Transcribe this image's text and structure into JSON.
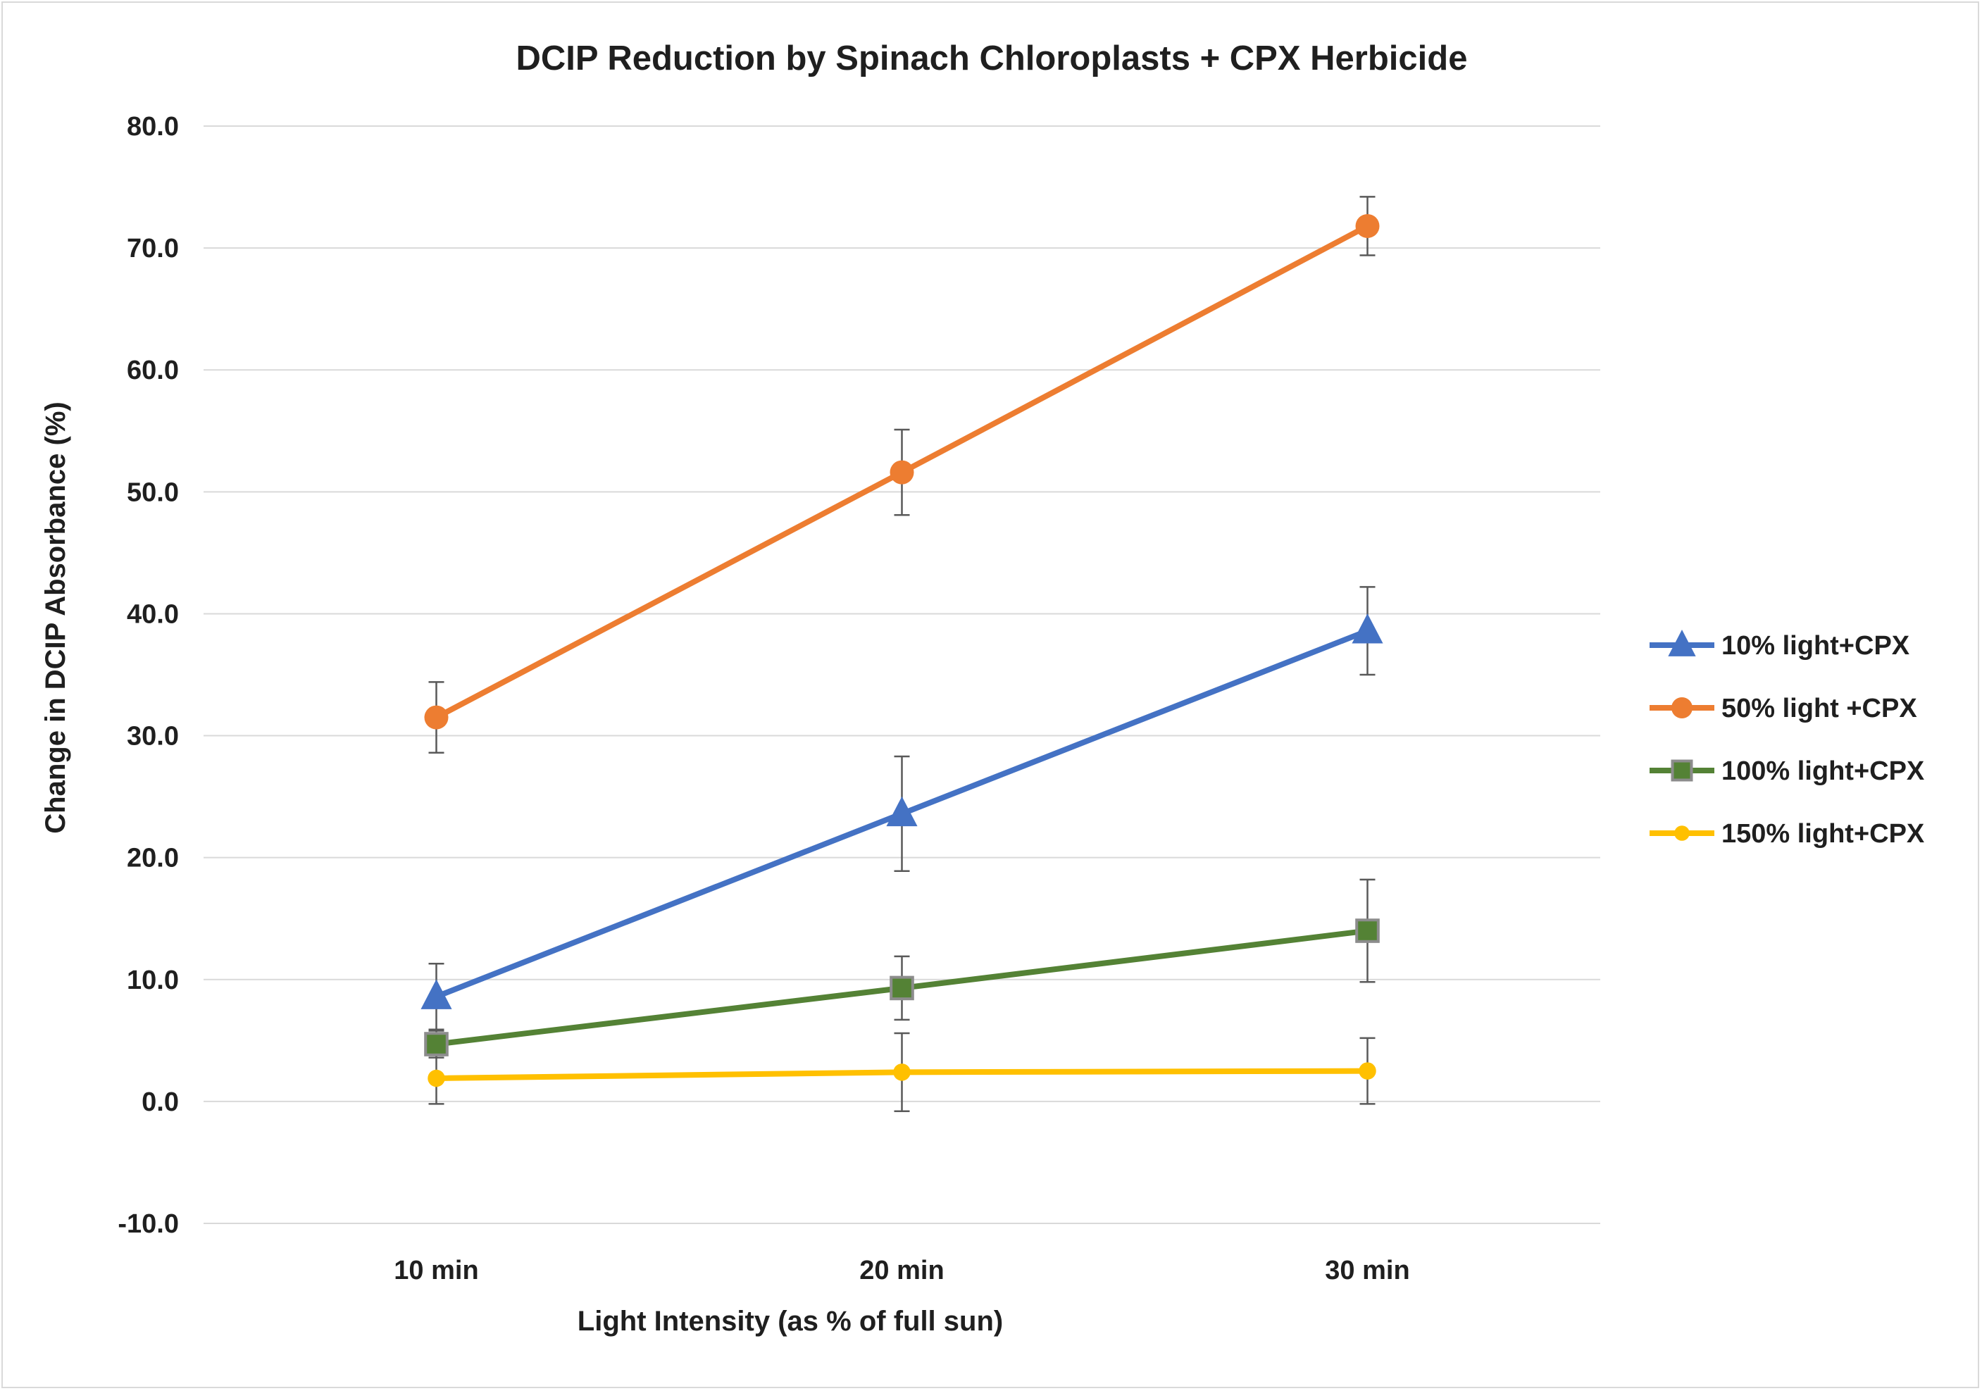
{
  "chart_data": {
    "type": "line",
    "title": "DCIP Reduction by Spinach Chloroplasts + CPX Herbicide",
    "xlabel": "Light Intensity (as % of full sun)",
    "ylabel": "Change in DCIP Absorbance (%)",
    "categories": [
      "10 min",
      "20 min",
      "30 min"
    ],
    "ylim": [
      -10,
      80
    ],
    "ytick_step": 10,
    "ytick_labels": [
      "-10.0",
      "0.0",
      "10.0",
      "20.0",
      "30.0",
      "40.0",
      "50.0",
      "60.0",
      "70.0",
      "80.0"
    ],
    "grid": true,
    "legend_position": "right",
    "series": [
      {
        "name": "10% light+CPX",
        "color": "#4472C4",
        "marker": "triangle",
        "values": [
          8.6,
          23.6,
          38.6
        ],
        "errors": [
          2.7,
          4.7,
          3.6
        ]
      },
      {
        "name": "50% light +CPX",
        "color": "#ED7D31",
        "marker": "circle",
        "values": [
          31.5,
          51.6,
          71.8
        ],
        "errors": [
          2.9,
          3.5,
          2.4
        ]
      },
      {
        "name": "100% light+CPX",
        "color": "#548235",
        "marker": "square",
        "values": [
          4.7,
          9.3,
          14.0
        ],
        "errors": [
          1.1,
          2.6,
          4.2
        ]
      },
      {
        "name": "150% light+CPX",
        "color": "#FFC000",
        "marker": "dot",
        "values": [
          1.9,
          2.4,
          2.5
        ],
        "errors": [
          2.1,
          3.2,
          2.7
        ]
      }
    ]
  }
}
